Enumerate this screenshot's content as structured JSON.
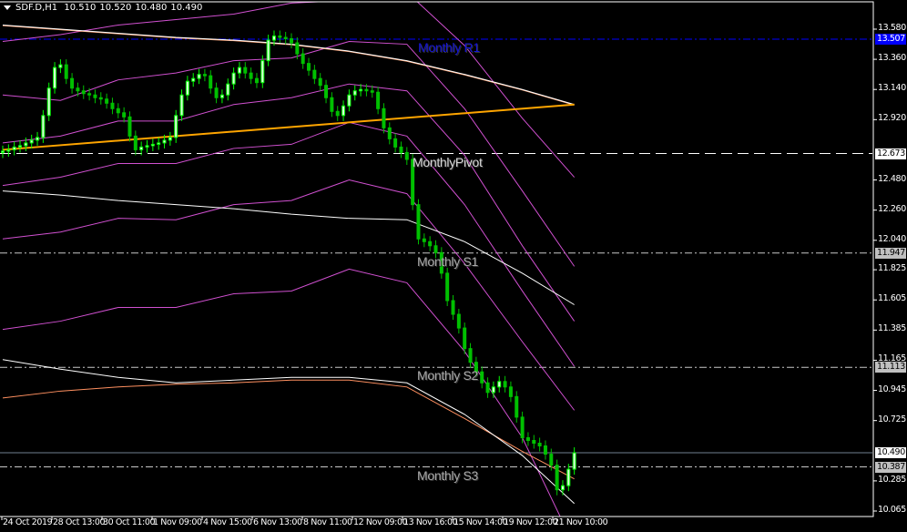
{
  "header": {
    "symbol": "SDF.D,H1",
    "open": "10.510",
    "high": "10.520",
    "low": "10.480",
    "close": "10.490"
  },
  "chart_data": {
    "type": "candlestick",
    "timeframe": "H1",
    "y_range": [
      10.065,
      13.58
    ],
    "y_ticks": [
      "13.580",
      "13.360",
      "13.140",
      "12.920",
      "12.480",
      "12.260",
      "12.040",
      "11.825",
      "11.605",
      "11.385",
      "11.165",
      "10.945",
      "10.725",
      "10.285",
      "10.065"
    ],
    "x_ticks": [
      "24 Oct 2019",
      "28 Oct 13:00",
      "30 Oct 11:00",
      "1 Nov 09:00",
      "4 Nov 15:00",
      "6 Nov 13:00",
      "8 Nov 11:00",
      "12 Nov 09:00",
      "13 Nov 16:00",
      "15 Nov 14:00",
      "19 Nov 12:00",
      "21 Nov 10:00"
    ],
    "closes": [
      12.69,
      12.7,
      12.72,
      12.73,
      12.75,
      12.77,
      12.79,
      12.95,
      13.15,
      13.3,
      13.32,
      13.22,
      13.15,
      13.13,
      13.11,
      13.1,
      13.08,
      13.07,
      13.04,
      13.0,
      12.97,
      12.94,
      12.8,
      12.7,
      12.72,
      12.73,
      12.74,
      12.75,
      12.77,
      12.79,
      12.95,
      13.1,
      13.2,
      13.22,
      13.25,
      13.24,
      13.15,
      13.08,
      13.1,
      13.18,
      13.26,
      13.3,
      13.26,
      13.22,
      13.19,
      13.35,
      13.5,
      13.53,
      13.52,
      13.51,
      13.48,
      13.4,
      13.33,
      13.28,
      13.22,
      13.17,
      13.08,
      12.98,
      12.95,
      13.02,
      13.1,
      13.13,
      13.14,
      13.13,
      13.12,
      13.0,
      12.86,
      12.78,
      12.72,
      12.68,
      12.63,
      12.3,
      12.05,
      12.03,
      12.0,
      11.95,
      11.8,
      11.6,
      11.5,
      11.4,
      11.25,
      11.15,
      11.08,
      11.0,
      10.93,
      10.97,
      11.01,
      10.97,
      10.9,
      10.75,
      10.6,
      10.58,
      10.56,
      10.54,
      10.48,
      10.4,
      10.22,
      10.25,
      10.37,
      10.49
    ],
    "first_open": 12.68,
    "indicator_sample_bars": [
      0,
      10,
      20,
      30,
      40,
      50,
      60,
      70,
      80,
      90,
      99
    ],
    "indicators": {
      "white_ma_upper": [
        13.61,
        13.58,
        13.55,
        13.52,
        13.5,
        13.47,
        13.42,
        13.35,
        13.25,
        13.14,
        13.03
      ],
      "orange_trendline": [
        12.7,
        13.03
      ],
      "white_ma_middle": [
        12.4,
        12.37,
        12.33,
        12.3,
        12.27,
        12.23,
        12.2,
        12.19,
        12.03,
        11.8,
        11.57
      ],
      "white_ma_lower": [
        11.17,
        11.1,
        11.04,
        11.0,
        11.02,
        11.04,
        11.04,
        11.0,
        10.77,
        10.47,
        10.12
      ],
      "orange_ma_lower": [
        10.89,
        10.94,
        10.97,
        10.99,
        11.0,
        11.02,
        11.02,
        10.97,
        10.74,
        10.5,
        10.3
      ],
      "magenta_bands": [
        [
          13.49,
          13.54,
          13.61,
          13.65,
          13.69,
          13.77,
          13.79,
          13.85,
          13.46,
          12.93,
          12.5
        ],
        [
          13.1,
          13.06,
          13.21,
          13.26,
          13.35,
          13.37,
          13.49,
          13.47,
          13.0,
          12.4,
          11.85
        ],
        [
          12.75,
          12.8,
          12.91,
          12.91,
          13.03,
          13.08,
          13.18,
          13.13,
          12.66,
          12.0,
          11.45
        ],
        [
          12.44,
          12.5,
          12.6,
          12.6,
          12.71,
          12.74,
          12.9,
          12.8,
          12.3,
          11.67,
          11.12
        ],
        [
          12.05,
          12.1,
          12.2,
          12.19,
          12.3,
          12.33,
          12.48,
          12.38,
          11.87,
          11.3,
          10.8
        ],
        [
          11.39,
          11.45,
          11.55,
          11.55,
          11.65,
          11.67,
          11.83,
          11.73,
          11.23,
          10.6,
          9.81
        ]
      ]
    },
    "levels": [
      {
        "name": "Monthly R1",
        "price": 13.507,
        "price_label": "13.507",
        "color": "#0000ff",
        "style": "dashdot",
        "text_color": "#1414d8",
        "label_bg": "#0000ff",
        "label_fg": "#ffffff"
      },
      {
        "name": "MonthlyPivot",
        "price": 12.673,
        "price_label": "12.673",
        "color": "#ffffff",
        "style": "dash",
        "text_color": "#d8d8d8",
        "label_bg": "#ffffff",
        "label_fg": "#000000"
      },
      {
        "name": "Monthly S1",
        "price": 11.947,
        "price_label": "11.947",
        "color": "#c8c8c8",
        "style": "dashdot",
        "text_color": "#a8a8a8",
        "label_bg": "#c0c0c0",
        "label_fg": "#000000"
      },
      {
        "name": "Monthly S2",
        "price": 11.113,
        "price_label": "11.113",
        "color": "#c8c8c8",
        "style": "dashdot",
        "text_color": "#a8a8a8",
        "label_bg": "#c0c0c0",
        "label_fg": "#000000"
      },
      {
        "name": "Monthly S3",
        "price": 10.387,
        "price_label": "10.387",
        "color": "#c8c8c8",
        "style": "dashdot",
        "text_color": "#a8a8a8",
        "label_bg": "#c0c0c0",
        "label_fg": "#000000"
      }
    ],
    "current_price": {
      "price": 10.49,
      "price_label": "10.490",
      "color": "#708090"
    },
    "colors": {
      "background": "#000000",
      "bull": "#00ff00",
      "bear": "#00c000",
      "bands": "#d050d0",
      "axis": "#ffffff"
    }
  }
}
